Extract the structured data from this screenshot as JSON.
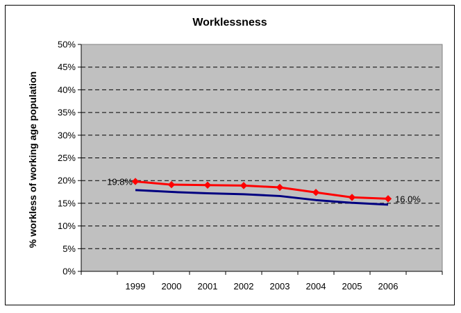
{
  "chart_data": {
    "type": "line",
    "title": "Worklessness",
    "xlabel": "",
    "ylabel": "% workless of working age population",
    "categories": [
      "1999",
      "2000",
      "2001",
      "2002",
      "2003",
      "2004",
      "2005",
      "2006"
    ],
    "ylim": [
      0,
      50
    ],
    "yticks": [
      "0%",
      "5%",
      "10%",
      "15%",
      "20%",
      "25%",
      "30%",
      "35%",
      "40%",
      "45%",
      "50%"
    ],
    "grid": true,
    "legend": "none",
    "series": [
      {
        "values": [
          19.8,
          19.1,
          19.0,
          18.9,
          18.5,
          17.4,
          16.3,
          16.0
        ],
        "color": "#ff0000",
        "marker": "diamond"
      },
      {
        "values": [
          17.9,
          17.5,
          17.2,
          17.0,
          16.6,
          15.7,
          15.1,
          14.7
        ],
        "color": "#000080",
        "marker": "none"
      }
    ],
    "data_labels": [
      {
        "series": 0,
        "index": 0,
        "text": "19.8%"
      },
      {
        "series": 0,
        "index": 7,
        "text": "16.0%"
      }
    ],
    "plot_background": "#c0c0c0"
  }
}
